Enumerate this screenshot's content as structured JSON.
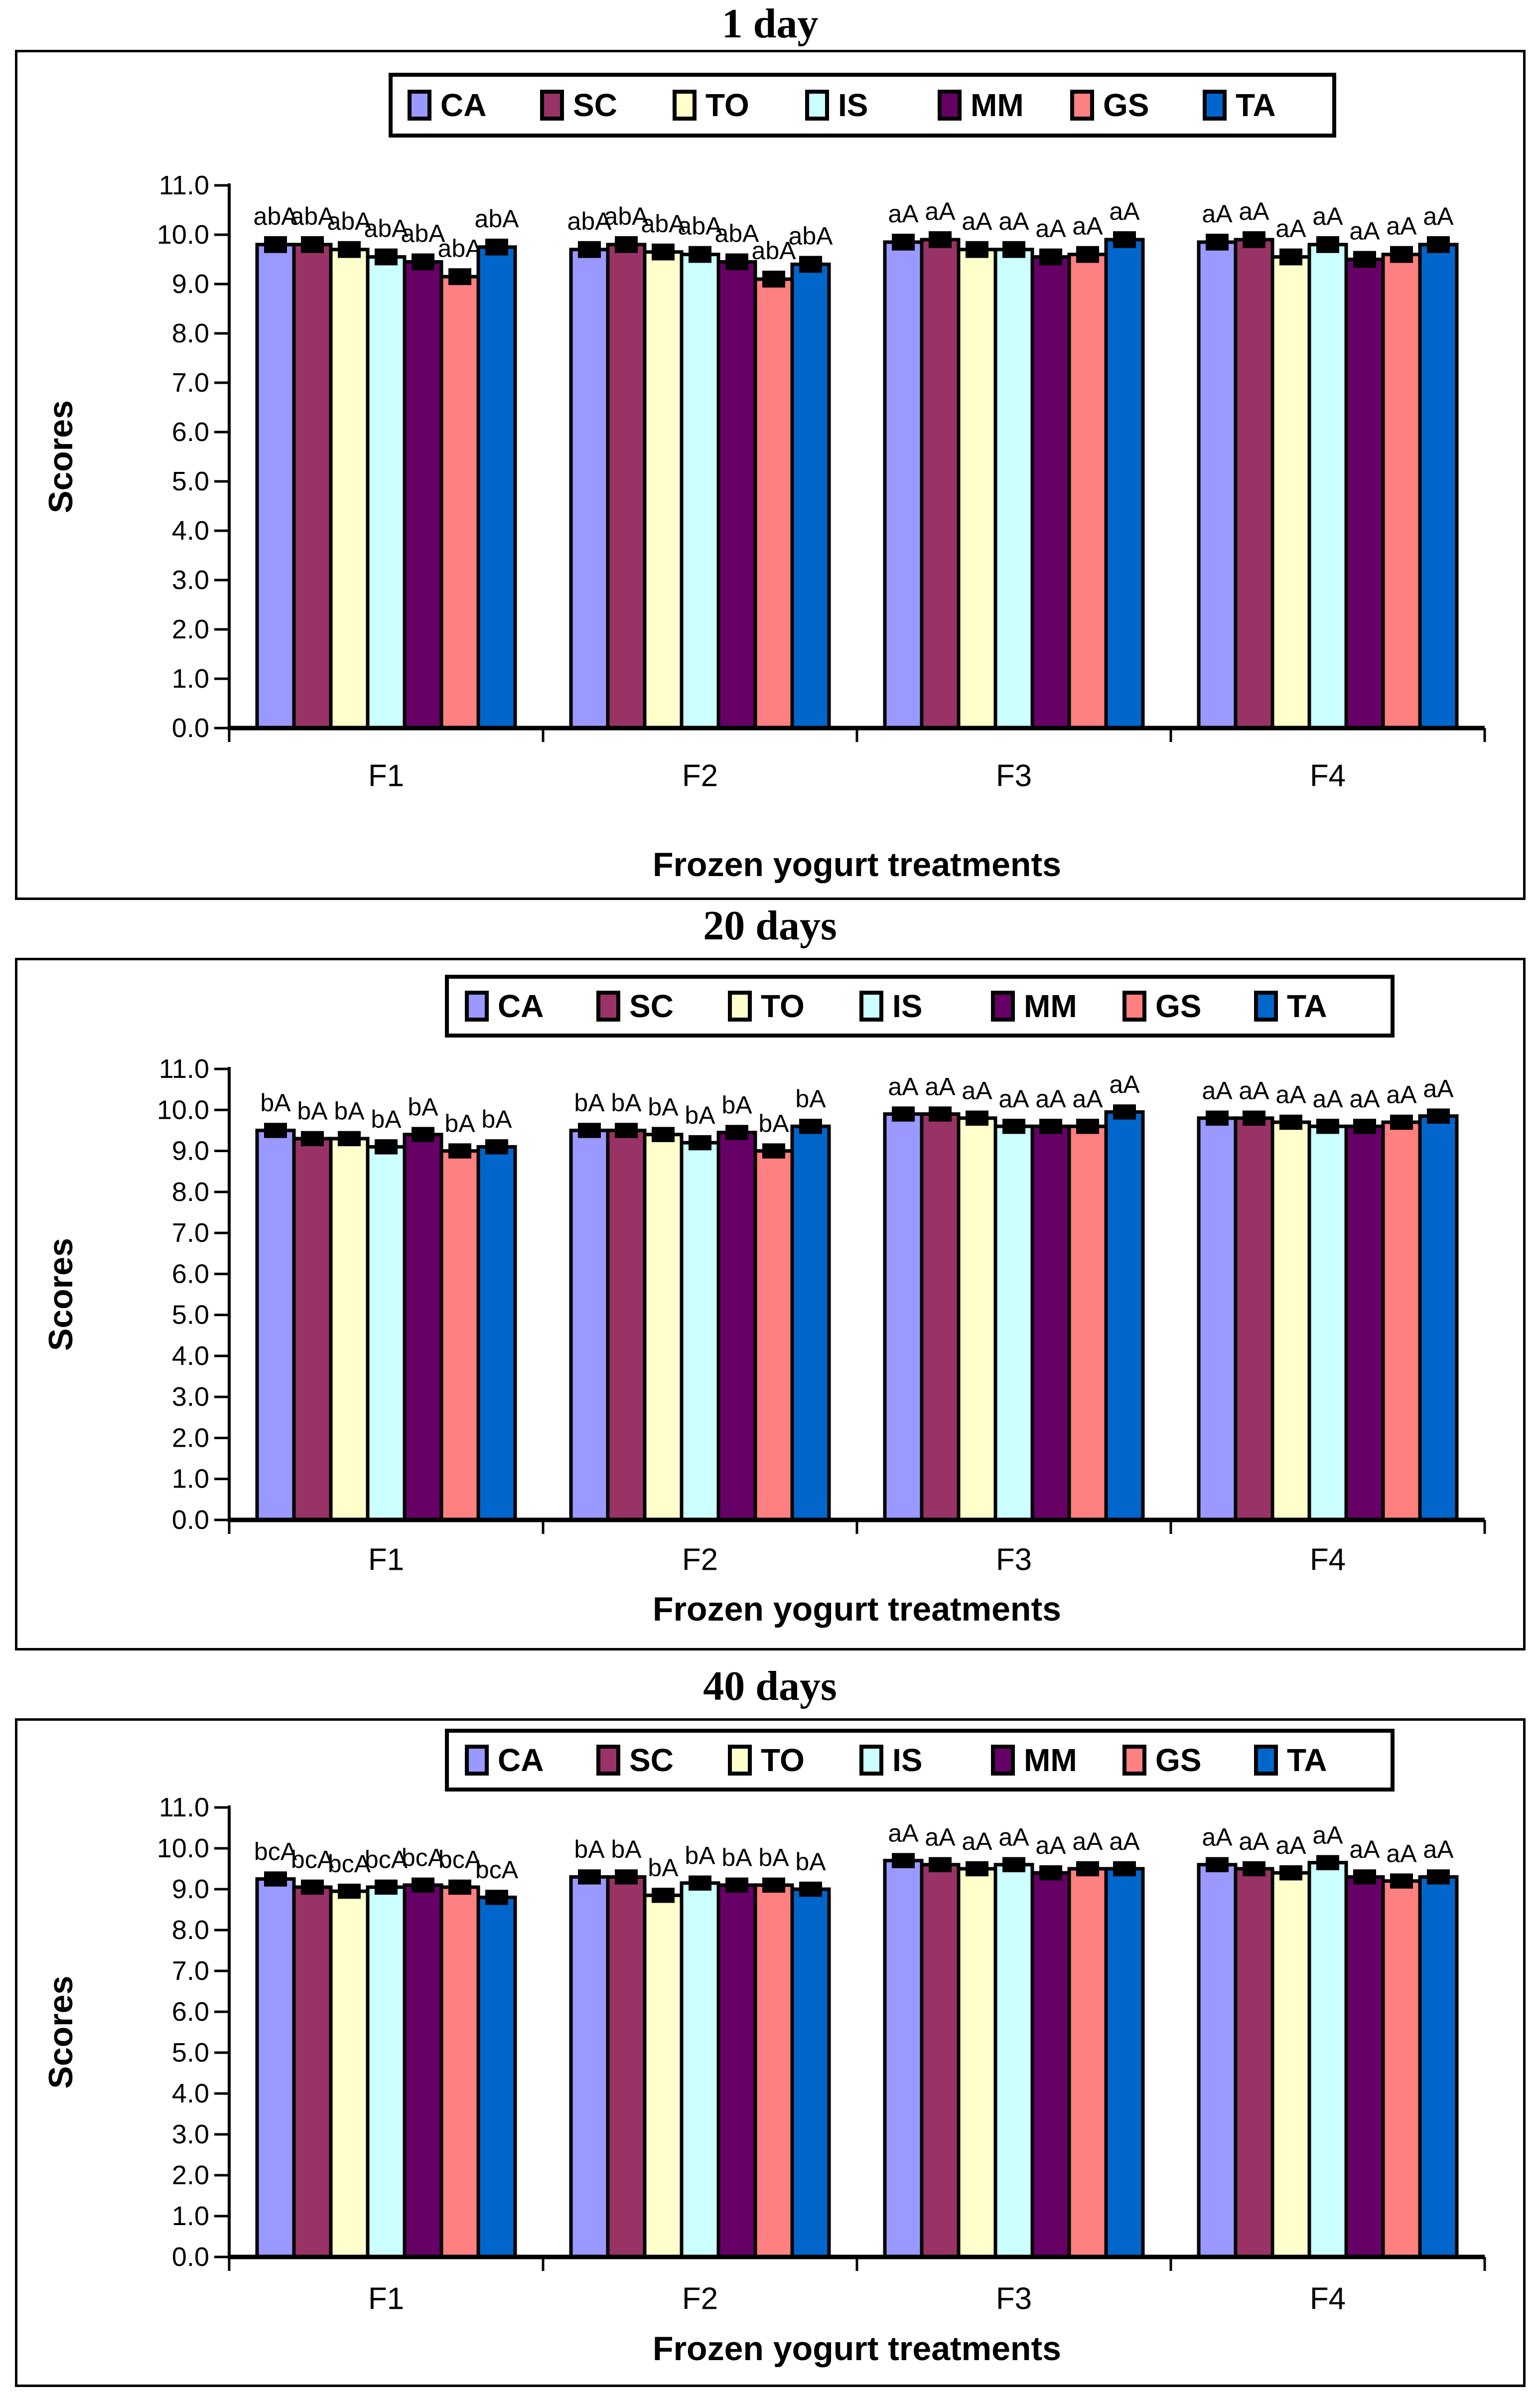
{
  "figure": {
    "background": "#FFFFFF",
    "panel_titles": [
      "1 day",
      "20 days",
      "40 days"
    ]
  },
  "chart_data": [
    {
      "type": "bar",
      "title": "1 day",
      "xlabel": "Frozen yogurt treatments",
      "ylabel": "Scores",
      "ylim": [
        0,
        11
      ],
      "ytick_step": 1,
      "ytick_labels": [
        "0.0",
        "1.0",
        "2.0",
        "3.0",
        "4.0",
        "5.0",
        "6.0",
        "7.0",
        "8.0",
        "9.0",
        "10.0",
        "11.0"
      ],
      "categories": [
        "F1",
        "F2",
        "F3",
        "F4"
      ],
      "legend_position": "top",
      "grid": false,
      "error_bar": 0.1,
      "series": [
        {
          "name": "CA",
          "color": "#9999FF",
          "values": [
            9.8,
            9.7,
            9.85,
            9.85
          ],
          "sig_labels": [
            "abA",
            "abA",
            "aA",
            "aA"
          ]
        },
        {
          "name": "SC",
          "color": "#993366",
          "values": [
            9.8,
            9.8,
            9.9,
            9.9
          ],
          "sig_labels": [
            "abA",
            "abA",
            "aA",
            "aA"
          ]
        },
        {
          "name": "TO",
          "color": "#FFFFCC",
          "values": [
            9.7,
            9.65,
            9.7,
            9.55
          ],
          "sig_labels": [
            "abA",
            "abA",
            "aA",
            "aA"
          ]
        },
        {
          "name": "IS",
          "color": "#CCFFFF",
          "values": [
            9.55,
            9.6,
            9.7,
            9.8
          ],
          "sig_labels": [
            "abA",
            "abA",
            "aA",
            "aA"
          ]
        },
        {
          "name": "MM",
          "color": "#660066",
          "values": [
            9.45,
            9.45,
            9.55,
            9.5
          ],
          "sig_labels": [
            "abA",
            "abA",
            "aA",
            "aA"
          ]
        },
        {
          "name": "GS",
          "color": "#FF8080",
          "values": [
            9.15,
            9.1,
            9.6,
            9.6
          ],
          "sig_labels": [
            "abA",
            "abA",
            "aA",
            "aA"
          ]
        },
        {
          "name": "TA",
          "color": "#0066CC",
          "values": [
            9.75,
            9.4,
            9.9,
            9.8
          ],
          "sig_labels": [
            "abA",
            "abA",
            "aA",
            "aA"
          ]
        }
      ]
    },
    {
      "type": "bar",
      "title": "20 days",
      "xlabel": "Frozen yogurt treatments",
      "ylabel": "Scores",
      "ylim": [
        0,
        11
      ],
      "ytick_step": 1,
      "ytick_labels": [
        "0.0",
        "1.0",
        "2.0",
        "3.0",
        "4.0",
        "5.0",
        "6.0",
        "7.0",
        "8.0",
        "9.0",
        "10.0",
        "11.0"
      ],
      "categories": [
        "F1",
        "F2",
        "F3",
        "F4"
      ],
      "legend_position": "top",
      "grid": false,
      "error_bar": 0.1,
      "series": [
        {
          "name": "CA",
          "color": "#9999FF",
          "values": [
            9.5,
            9.5,
            9.9,
            9.8
          ],
          "sig_labels": [
            "bA",
            "bA",
            "aA",
            "aA"
          ]
        },
        {
          "name": "SC",
          "color": "#993366",
          "values": [
            9.3,
            9.5,
            9.9,
            9.8
          ],
          "sig_labels": [
            "bA",
            "bA",
            "aA",
            "aA"
          ]
        },
        {
          "name": "TO",
          "color": "#FFFFCC",
          "values": [
            9.3,
            9.4,
            9.8,
            9.7
          ],
          "sig_labels": [
            "bA",
            "bA",
            "aA",
            "aA"
          ]
        },
        {
          "name": "IS",
          "color": "#CCFFFF",
          "values": [
            9.1,
            9.2,
            9.6,
            9.6
          ],
          "sig_labels": [
            "bA",
            "bA",
            "aA",
            "aA"
          ]
        },
        {
          "name": "MM",
          "color": "#660066",
          "values": [
            9.4,
            9.45,
            9.6,
            9.6
          ],
          "sig_labels": [
            "bA",
            "bA",
            "aA",
            "aA"
          ]
        },
        {
          "name": "GS",
          "color": "#FF8080",
          "values": [
            9.0,
            9.0,
            9.6,
            9.7
          ],
          "sig_labels": [
            "bA",
            "bA",
            "aA",
            "aA"
          ]
        },
        {
          "name": "TA",
          "color": "#0066CC",
          "values": [
            9.1,
            9.6,
            9.95,
            9.85
          ],
          "sig_labels": [
            "bA",
            "bA",
            "aA",
            "aA"
          ]
        }
      ]
    },
    {
      "type": "bar",
      "title": "40 days",
      "xlabel": "Frozen yogurt treatments",
      "ylabel": "Scores",
      "ylim": [
        0,
        11
      ],
      "ytick_step": 1,
      "ytick_labels": [
        "0.0",
        "1.0",
        "2.0",
        "3.0",
        "4.0",
        "5.0",
        "6.0",
        "7.0",
        "8.0",
        "9.0",
        "10.0",
        "11.0"
      ],
      "categories": [
        "F1",
        "F2",
        "F3",
        "F4"
      ],
      "legend_position": "top",
      "grid": false,
      "error_bar": 0.1,
      "series": [
        {
          "name": "CA",
          "color": "#9999FF",
          "values": [
            9.25,
            9.3,
            9.7,
            9.6
          ],
          "sig_labels": [
            "bcA",
            "bA",
            "aA",
            "aA"
          ]
        },
        {
          "name": "SC",
          "color": "#993366",
          "values": [
            9.05,
            9.3,
            9.6,
            9.5
          ],
          "sig_labels": [
            "bcA",
            "bA",
            "aA",
            "aA"
          ]
        },
        {
          "name": "TO",
          "color": "#FFFFCC",
          "values": [
            8.95,
            8.85,
            9.5,
            9.4
          ],
          "sig_labels": [
            "bcA",
            "bA",
            "aA",
            "aA"
          ]
        },
        {
          "name": "IS",
          "color": "#CCFFFF",
          "values": [
            9.05,
            9.15,
            9.6,
            9.65
          ],
          "sig_labels": [
            "bcA",
            "bA",
            "aA",
            "aA"
          ]
        },
        {
          "name": "MM",
          "color": "#660066",
          "values": [
            9.1,
            9.1,
            9.4,
            9.3
          ],
          "sig_labels": [
            "bcA",
            "bA",
            "aA",
            "aA"
          ]
        },
        {
          "name": "GS",
          "color": "#FF8080",
          "values": [
            9.05,
            9.1,
            9.5,
            9.2
          ],
          "sig_labels": [
            "bcA",
            "bA",
            "aA",
            "aA"
          ]
        },
        {
          "name": "TA",
          "color": "#0066CC",
          "values": [
            8.8,
            9.0,
            9.5,
            9.3
          ],
          "sig_labels": [
            "bcA",
            "bA",
            "aA",
            "aA"
          ]
        }
      ]
    }
  ]
}
